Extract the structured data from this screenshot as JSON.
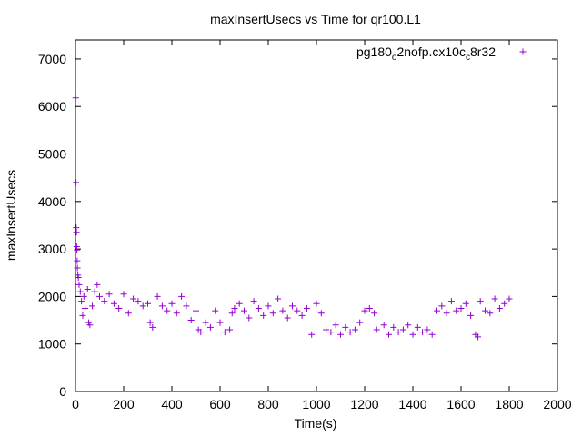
{
  "chart_data": {
    "type": "scatter",
    "title": "maxInsertUsecs vs Time for qr100.L1",
    "xlabel": "Time(s)",
    "ylabel": "maxInsertUsecs",
    "xlim": [
      0,
      2000
    ],
    "ylim": [
      0,
      7400
    ],
    "xticks": [
      0,
      200,
      400,
      600,
      800,
      1000,
      1200,
      1400,
      1600,
      1800,
      2000
    ],
    "yticks": [
      0,
      1000,
      2000,
      3000,
      4000,
      5000,
      6000,
      7000
    ],
    "grid": false,
    "legend_position": "top-right",
    "marker": "+",
    "color": "#9400d3",
    "series": [
      {
        "name": "pg180_o2nofp.cx10c_c8r32",
        "legend_parts": [
          {
            "text": "pg180",
            "sub": false
          },
          {
            "text": "o",
            "sub": true
          },
          {
            "text": "2nofp.cx10c",
            "sub": false
          },
          {
            "text": "c",
            "sub": true
          },
          {
            "text": "8r32",
            "sub": false
          }
        ],
        "points": [
          [
            1,
            6180
          ],
          [
            2,
            4400
          ],
          [
            3,
            3450
          ],
          [
            4,
            3350
          ],
          [
            5,
            3050
          ],
          [
            6,
            2980
          ],
          [
            7,
            2750
          ],
          [
            8,
            2600
          ],
          [
            10,
            2450
          ],
          [
            12,
            2400
          ],
          [
            15,
            2250
          ],
          [
            20,
            2100
          ],
          [
            25,
            1900
          ],
          [
            30,
            1600
          ],
          [
            35,
            2000
          ],
          [
            40,
            1750
          ],
          [
            50,
            2150
          ],
          [
            55,
            1450
          ],
          [
            60,
            1400
          ],
          [
            70,
            1800
          ],
          [
            80,
            2100
          ],
          [
            90,
            2250
          ],
          [
            100,
            2000
          ],
          [
            120,
            1900
          ],
          [
            140,
            2050
          ],
          [
            160,
            1850
          ],
          [
            180,
            1750
          ],
          [
            200,
            2050
          ],
          [
            220,
            1650
          ],
          [
            240,
            1950
          ],
          [
            260,
            1900
          ],
          [
            280,
            1800
          ],
          [
            300,
            1850
          ],
          [
            310,
            1450
          ],
          [
            320,
            1350
          ],
          [
            340,
            2000
          ],
          [
            360,
            1800
          ],
          [
            380,
            1700
          ],
          [
            400,
            1850
          ],
          [
            420,
            1650
          ],
          [
            440,
            2000
          ],
          [
            460,
            1800
          ],
          [
            480,
            1500
          ],
          [
            500,
            1700
          ],
          [
            510,
            1300
          ],
          [
            520,
            1250
          ],
          [
            540,
            1450
          ],
          [
            560,
            1350
          ],
          [
            580,
            1700
          ],
          [
            600,
            1450
          ],
          [
            620,
            1250
          ],
          [
            640,
            1300
          ],
          [
            650,
            1650
          ],
          [
            660,
            1750
          ],
          [
            680,
            1850
          ],
          [
            700,
            1700
          ],
          [
            720,
            1550
          ],
          [
            740,
            1900
          ],
          [
            760,
            1750
          ],
          [
            780,
            1600
          ],
          [
            800,
            1800
          ],
          [
            820,
            1650
          ],
          [
            840,
            1950
          ],
          [
            860,
            1700
          ],
          [
            880,
            1550
          ],
          [
            900,
            1800
          ],
          [
            920,
            1700
          ],
          [
            940,
            1600
          ],
          [
            960,
            1750
          ],
          [
            980,
            1200
          ],
          [
            1000,
            1850
          ],
          [
            1020,
            1650
          ],
          [
            1040,
            1300
          ],
          [
            1060,
            1250
          ],
          [
            1080,
            1400
          ],
          [
            1100,
            1200
          ],
          [
            1120,
            1350
          ],
          [
            1140,
            1250
          ],
          [
            1160,
            1300
          ],
          [
            1180,
            1450
          ],
          [
            1200,
            1700
          ],
          [
            1220,
            1750
          ],
          [
            1240,
            1650
          ],
          [
            1250,
            1300
          ],
          [
            1280,
            1400
          ],
          [
            1300,
            1200
          ],
          [
            1320,
            1350
          ],
          [
            1340,
            1250
          ],
          [
            1360,
            1300
          ],
          [
            1380,
            1400
          ],
          [
            1400,
            1200
          ],
          [
            1420,
            1350
          ],
          [
            1440,
            1250
          ],
          [
            1460,
            1300
          ],
          [
            1480,
            1200
          ],
          [
            1500,
            1700
          ],
          [
            1520,
            1800
          ],
          [
            1540,
            1650
          ],
          [
            1560,
            1900
          ],
          [
            1580,
            1700
          ],
          [
            1600,
            1750
          ],
          [
            1620,
            1850
          ],
          [
            1640,
            1600
          ],
          [
            1660,
            1200
          ],
          [
            1670,
            1150
          ],
          [
            1680,
            1900
          ],
          [
            1700,
            1700
          ],
          [
            1720,
            1650
          ],
          [
            1740,
            1950
          ],
          [
            1760,
            1750
          ],
          [
            1780,
            1850
          ],
          [
            1800,
            1950
          ]
        ]
      }
    ]
  }
}
